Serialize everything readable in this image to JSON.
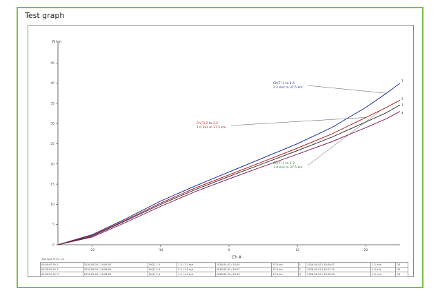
{
  "window": {
    "title": "Test graph"
  },
  "chart_data": {
    "type": "line",
    "title": "Test graph",
    "xlabel": "Ch A",
    "ylabel": "",
    "y_unit_label": "N km",
    "xlim": [
      -25,
      25
    ],
    "ylim": [
      0,
      50
    ],
    "x_ticks": [
      -20,
      -10,
      0,
      10,
      20
    ],
    "y_ticks": [
      0,
      5,
      10,
      15,
      20,
      25,
      30,
      35,
      40,
      45
    ],
    "series": [
      {
        "color": "#1f2fa6",
        "end_label": "1",
        "x": [
          -25,
          -20,
          -15,
          -10,
          -5,
          0,
          5,
          10,
          15,
          20,
          23,
          25
        ],
        "y": [
          0,
          2.5,
          6.5,
          10.8,
          14.5,
          18,
          21.5,
          25,
          29,
          34,
          37.5,
          40
        ]
      },
      {
        "color": "#b01a1a",
        "end_label": "2",
        "x": [
          -25,
          -20,
          -15,
          -10,
          -5,
          0,
          5,
          10,
          15,
          20,
          23,
          25
        ],
        "y": [
          0,
          2.3,
          6.2,
          10.3,
          14,
          17.3,
          20.6,
          23.9,
          27.4,
          31.5,
          34,
          35.8
        ]
      },
      {
        "color": "#333333",
        "end_label": "3",
        "x": [
          -25,
          -20,
          -15,
          -10,
          -5,
          0,
          5,
          10,
          15,
          20,
          23,
          25
        ],
        "y": [
          0,
          2.1,
          6,
          10,
          13.6,
          16.9,
          20.1,
          23.3,
          26.6,
          30.4,
          32.7,
          34.6
        ]
      },
      {
        "color": "#7a1d5a",
        "end_label": "4",
        "x": [
          -25,
          -20,
          -15,
          -10,
          -5,
          0,
          5,
          10,
          15,
          20,
          23,
          25
        ],
        "y": [
          0,
          1.9,
          5.6,
          9.5,
          13.1,
          16.3,
          19.4,
          22.4,
          25.5,
          29,
          31.2,
          33
        ]
      }
    ],
    "annotations": [
      {
        "color": "#1f2fa6",
        "line1": "Ch(T)  1 to 1.5",
        "line2": "1.2 m/s  m 37.5 km",
        "points_to": [
          23,
          37.5
        ]
      },
      {
        "color": "#b01a1a",
        "line1": "Ch(T)  2 to 2.2",
        "line2": "1.0 m/s  m 37.5 km",
        "points_to": [
          20,
          31.5
        ]
      },
      {
        "color": "#2a7a2a",
        "line1": "Ch(T)  1 to 1.2",
        "line2": "1.0 m/s  m 37.5 km",
        "points_to": [
          22,
          33
        ]
      }
    ],
    "table_caption": "Test type  Ch(T)  1-5",
    "table_rows": [
      [
        "00:00:00 Ch 1",
        "2016-05-03 / 10:04:00",
        "Ch(T) 1.0",
        "1.5 / 1.2 m/s",
        "2016-05-03 / 10:05",
        "37.5 km",
        "1",
        "2016-05-03 / 10:05:07",
        "1.2 m/s",
        "OK"
      ],
      [
        "00:00:00 Ch 2",
        "2016-05-03 / 10:06:00",
        "Ch(T) 2.0",
        "2.2 / 1.0 m/s",
        "2016-05-03 / 10:07",
        "37.5 km",
        "2",
        "2016-05-03 / 10:07:12",
        "1.0 m/s",
        "OK"
      ],
      [
        "00:00:00 Ch 3",
        "2016-05-03 / 10:08:00",
        "Ch(T) 1.0",
        "1.2 / 1.0 m/s",
        "2016-05-03 / 10:09",
        "37.5 km",
        "3",
        "2016-05-03 / 10:09:20",
        "1.0 m/s",
        "OK"
      ]
    ]
  }
}
